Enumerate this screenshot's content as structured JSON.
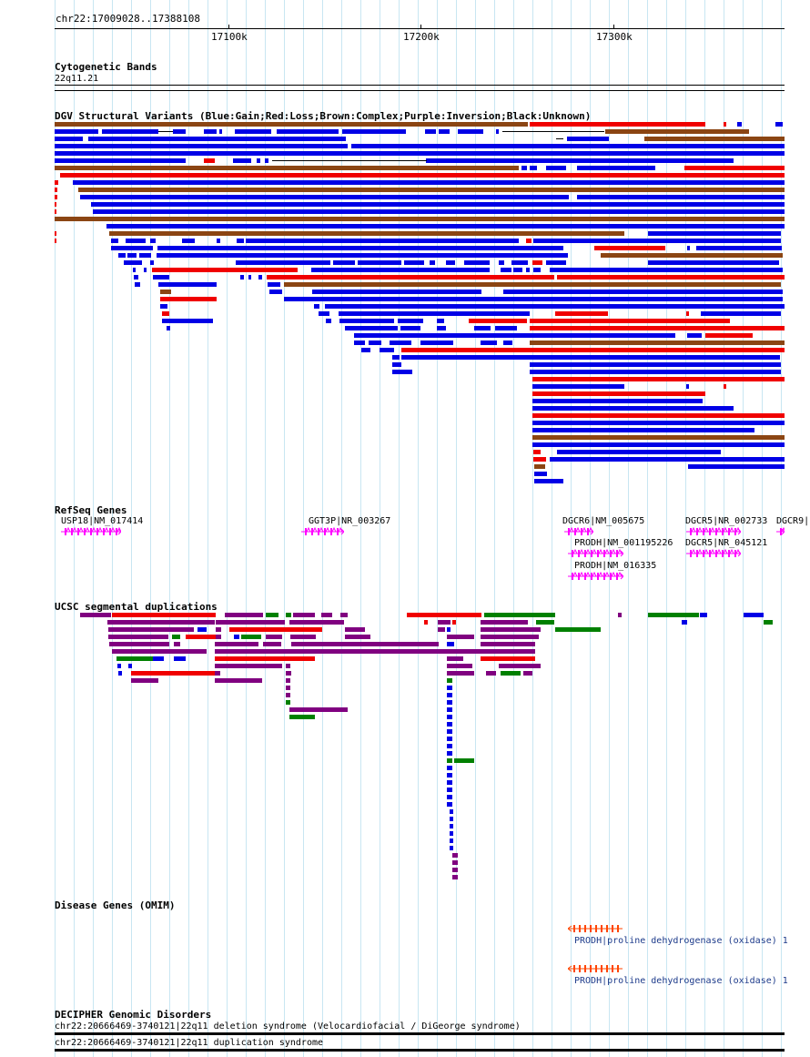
{
  "ruler": {
    "range": "chr22:17009028..17388108",
    "ticks": [
      "17100k",
      "17200k",
      "17300k"
    ]
  },
  "tracks": {
    "cyto": {
      "title": "Cytogenetic Bands",
      "band": "22q11.21"
    },
    "dgv": {
      "title": "DGV Structural Variants (Blue:Gain;Red:Loss;Brown:Complex;Purple:Inversion;Black:Unknown)"
    },
    "refseq": {
      "title": "RefSeq Genes",
      "genes": [
        "USP18|NM_017414",
        "GGT3P|NR_003267",
        "DGCR6|NM_005675",
        "DGCR5|NR_002733",
        "DGCR9|",
        "PRODH|NM_001195226",
        "DGCR5|NR_045121",
        "PRODH|NM_016335"
      ]
    },
    "segdup": {
      "title": "UCSC segmental duplications"
    },
    "omim": {
      "title": "Disease Genes (OMIM)",
      "entries": [
        "PRODH|proline dehydrogenase (oxidase) 1",
        "PRODH|proline dehydrogenase (oxidase) 1"
      ]
    },
    "decipher": {
      "title": "DECIPHER Genomic Disorders",
      "entries": [
        "chr22:20666469-3740121|22q11 deletion syndrome (Velocardiofacial / DiGeorge syndrome)",
        "chr22:20666469-3740121|22q11 duplication syndrome"
      ]
    }
  },
  "colors": {
    "gain": "#0000e6",
    "loss": "#f00000",
    "complex": "#8b4513",
    "inversion": "#800080",
    "segdup_green": "#008000",
    "gene_magenta": "#ff00ff",
    "omim_orange": "#ff4500",
    "grid": "#c8e6f2"
  }
}
